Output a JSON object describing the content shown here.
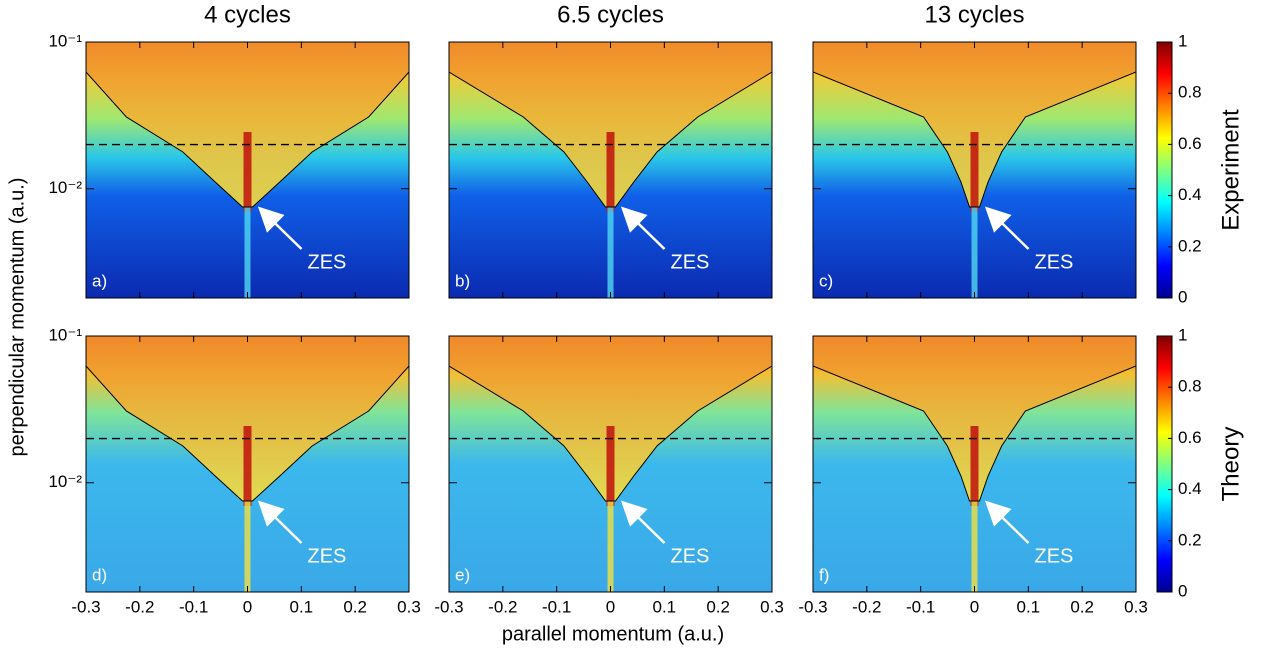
{
  "xlabel": "parallel momentum (a.u.)",
  "ylabel": "perpendicular momentum (a.u.)",
  "chart_data": [
    {
      "type": "heatmap",
      "title": "4 cycles",
      "panel_label": "a)",
      "annotation": "ZES",
      "xlim": [
        -0.3,
        0.3
      ],
      "xticks": [
        -0.3,
        -0.2,
        -0.1,
        0,
        0.1,
        0.2,
        0.3
      ],
      "show_xtick_labels": false,
      "ylim": [
        0.0018,
        0.1
      ],
      "y_log": true,
      "yticks": [
        {
          "value": 0.1,
          "label": "10⁻¹"
        },
        {
          "value": 0.01,
          "label": "10⁻²"
        }
      ],
      "show_ytick_labels": true,
      "hline": 0.02
    },
    {
      "type": "heatmap",
      "title": "6.5 cycles",
      "panel_label": "b)",
      "annotation": "ZES",
      "xlim": [
        -0.3,
        0.3
      ],
      "xticks": [
        -0.3,
        -0.2,
        -0.1,
        0,
        0.1,
        0.2,
        0.3
      ],
      "show_xtick_labels": false,
      "ylim": [
        0.0018,
        0.1
      ],
      "y_log": true,
      "yticks": [
        {
          "value": 0.1,
          "label": "10⁻¹"
        },
        {
          "value": 0.01,
          "label": "10⁻²"
        }
      ],
      "show_ytick_labels": false,
      "hline": 0.02
    },
    {
      "type": "heatmap",
      "title": "13 cycles",
      "panel_label": "c)",
      "annotation": "ZES",
      "xlim": [
        -0.3,
        0.3
      ],
      "xticks": [
        -0.3,
        -0.2,
        -0.1,
        0,
        0.1,
        0.2,
        0.3
      ],
      "show_xtick_labels": false,
      "ylim": [
        0.0018,
        0.1
      ],
      "y_log": true,
      "yticks": [
        {
          "value": 0.1,
          "label": "10⁻¹"
        },
        {
          "value": 0.01,
          "label": "10⁻²"
        }
      ],
      "show_ytick_labels": false,
      "hline": 0.02,
      "colorbar": {
        "label": "Experiment",
        "lim": [
          0,
          1
        ],
        "ticks": [
          0,
          0.2,
          0.4,
          0.6,
          0.8,
          1
        ]
      }
    },
    {
      "type": "heatmap",
      "panel_label": "d)",
      "annotation": "ZES",
      "xlim": [
        -0.3,
        0.3
      ],
      "xticks": [
        -0.3,
        -0.2,
        -0.1,
        0,
        0.1,
        0.2,
        0.3
      ],
      "show_xtick_labels": true,
      "ylim": [
        0.0018,
        0.1
      ],
      "y_log": true,
      "yticks": [
        {
          "value": 0.1,
          "label": "10⁻¹"
        },
        {
          "value": 0.01,
          "label": "10⁻²"
        }
      ],
      "show_ytick_labels": true,
      "hline": 0.02
    },
    {
      "type": "heatmap",
      "panel_label": "e)",
      "annotation": "ZES",
      "xlim": [
        -0.3,
        0.3
      ],
      "xticks": [
        -0.3,
        -0.2,
        -0.1,
        0,
        0.1,
        0.2,
        0.3
      ],
      "show_xtick_labels": true,
      "ylim": [
        0.0018,
        0.1
      ],
      "y_log": true,
      "yticks": [
        {
          "value": 0.1,
          "label": "10⁻¹"
        },
        {
          "value": 0.01,
          "label": "10⁻²"
        }
      ],
      "show_ytick_labels": false,
      "hline": 0.02
    },
    {
      "type": "heatmap",
      "panel_label": "f)",
      "annotation": "ZES",
      "xlim": [
        -0.3,
        0.3
      ],
      "xticks": [
        -0.3,
        -0.2,
        -0.1,
        0,
        0.1,
        0.2,
        0.3
      ],
      "show_xtick_labels": true,
      "ylim": [
        0.0018,
        0.1
      ],
      "y_log": true,
      "yticks": [
        {
          "value": 0.1,
          "label": "10⁻¹"
        },
        {
          "value": 0.01,
          "label": "10⁻²"
        }
      ],
      "show_ytick_labels": false,
      "hline": 0.02,
      "colorbar": {
        "label": "Theory",
        "lim": [
          0,
          1
        ],
        "ticks": [
          0,
          0.2,
          0.4,
          0.6,
          0.8,
          1
        ]
      }
    }
  ]
}
